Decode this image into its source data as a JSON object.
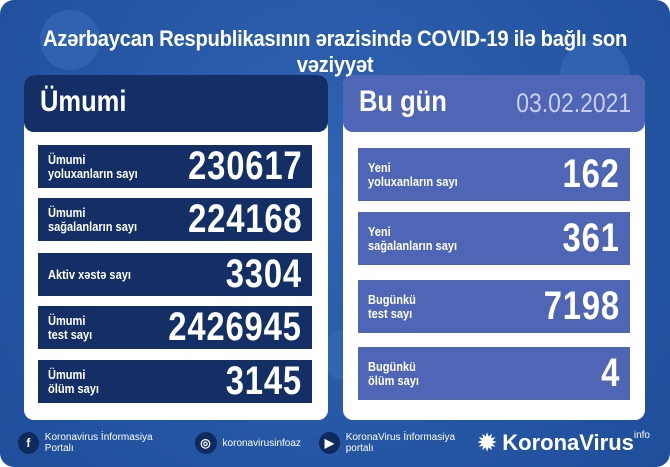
{
  "title": "Azərbaycan Respublikasının ərazisində COVID-19 ilə bağlı son vəziyyət",
  "total": {
    "heading": "Ümumi",
    "rows": [
      {
        "label_1": "Ümumi",
        "label_2": "yoluxanların sayı",
        "value": "230617"
      },
      {
        "label_1": "Ümumi",
        "label_2": "sağalanların sayı",
        "value": "224168"
      },
      {
        "label_1": "Aktiv xəstə sayı",
        "label_2": "",
        "value": "3304"
      },
      {
        "label_1": "Ümumi",
        "label_2": "test sayı",
        "value": "2426945"
      },
      {
        "label_1": "Ümumi",
        "label_2": "ölüm sayı",
        "value": "3145"
      }
    ]
  },
  "today": {
    "heading": "Bu gün",
    "date": "03.02.2021",
    "rows": [
      {
        "label_1": "Yeni",
        "label_2": "yoluxanların sayı",
        "value": "162"
      },
      {
        "label_1": "Yeni",
        "label_2": "sağalanların sayı",
        "value": "361"
      },
      {
        "label_1": "Bugünkü",
        "label_2": "test sayı",
        "value": "7198"
      },
      {
        "label_1": "Bugünkü",
        "label_2": "ölüm sayı",
        "value": "4"
      }
    ]
  },
  "footer": {
    "facebook": "Koronavirus İnformasiya Portalı",
    "instagram": "koronavirusinfoaz",
    "youtube": "KoronaVirus İnformasiya portalı",
    "brand": "KoronaVirus",
    "brand_sup": "info"
  },
  "colors": {
    "background": "#2a5aa8",
    "navy": "#142f66",
    "periwinkle": "#4f65b5"
  }
}
